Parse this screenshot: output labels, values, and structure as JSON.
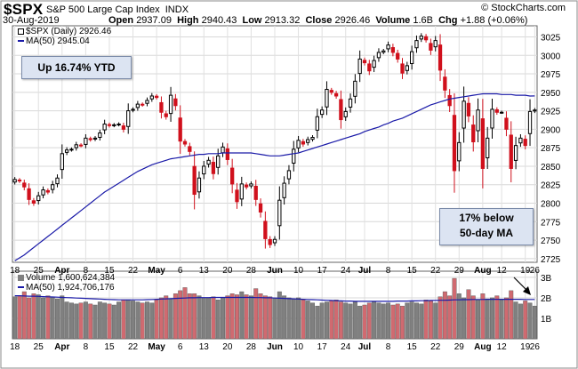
{
  "header": {
    "symbol": "$SPX",
    "name": "S&P 500 Large Cap Index",
    "exchange": "INDX",
    "date": "30-Aug-2019",
    "open_label": "Open",
    "open": "2937.09",
    "high_label": "High",
    "high": "2940.43",
    "low_label": "Low",
    "low": "2913.32",
    "close_label": "Close",
    "close": "2926.46",
    "volume_label": "Volume",
    "volume": "1.6B",
    "chg_label": "Chg",
    "chg": "+1.88 (+0.06%)",
    "brand": "© StockCharts.com"
  },
  "legend": {
    "price": "$SPX (Daily) 2926.46",
    "ma": "MA(50) 2945.04",
    "volume": "Volume 1,600,624,384",
    "vol_ma": "MA(50) 1,924,706,176"
  },
  "annotations": {
    "ytd": "Up 16.74% YTD",
    "below_line1": "17% below",
    "below_line2": "50-day MA"
  },
  "colors": {
    "up": "#000000",
    "down": "#d0101c",
    "ma": "#1a1aa8",
    "vol_up": "#808080",
    "vol_down": "#d06a70",
    "callout_bg": "#dce4f2"
  },
  "chart_data": [
    {
      "type": "candlestick",
      "title": "$SPX S&P 500 Large Cap Index INDX",
      "ylim": [
        2720,
        3040
      ],
      "y_ticks": [
        2725,
        2750,
        2775,
        2800,
        2825,
        2850,
        2875,
        2900,
        2925,
        2950,
        2975,
        3000,
        3025
      ],
      "x_ticks": [
        "18",
        "25",
        "Apr",
        "8",
        "15",
        "22",
        "May",
        "6",
        "13",
        "20",
        "28",
        "Jun",
        "10",
        "17",
        "24",
        "Jul",
        "8",
        "15",
        "22",
        "29",
        "Aug",
        "12",
        "19",
        "26"
      ],
      "grid": true,
      "series": [
        {
          "name": "$SPX (Daily)",
          "close": [
            2832,
            2830,
            2822,
            2805,
            2800,
            2810,
            2818,
            2815,
            2825,
            2834,
            2867,
            2872,
            2873,
            2879,
            2878,
            2888,
            2886,
            2888,
            2895,
            2907,
            2905,
            2906,
            2907,
            2900,
            2925,
            2927,
            2934,
            2933,
            2939,
            2945,
            2943,
            2923,
            2917,
            2946,
            2932,
            2884,
            2880,
            2870,
            2812,
            2834,
            2850,
            2858,
            2840,
            2864,
            2876,
            2859,
            2826,
            2802,
            2826,
            2822,
            2826,
            2805,
            2788,
            2752,
            2744,
            2751,
            2804,
            2827,
            2844,
            2873,
            2885,
            2880,
            2886,
            2889,
            2917,
            2926,
            2954,
            2950,
            2945,
            2913,
            2924,
            2941,
            2965,
            2995,
            2990,
            2979,
            2993,
            3004,
            3006,
            3014,
            3004,
            2995,
            2976,
            2986,
            3005,
            3020,
            3026,
            3021,
            3007,
            3020,
            2980,
            2953,
            2932,
            2844,
            2882,
            2938,
            2918,
            2883,
            2926,
            2847,
            2888,
            2927,
            2923,
            2923,
            2900,
            2847,
            2878,
            2888,
            2878,
            2924,
            2926
          ]
        },
        {
          "name": "MA(50)",
          "values": [
            2722,
            2726,
            2730,
            2735,
            2740,
            2745,
            2750,
            2755,
            2760,
            2765,
            2770,
            2775,
            2780,
            2785,
            2790,
            2795,
            2800,
            2805,
            2810,
            2815,
            2819,
            2823,
            2827,
            2831,
            2835,
            2839,
            2843,
            2846,
            2849,
            2852,
            2854,
            2856,
            2858,
            2860,
            2861,
            2862,
            2863,
            2864,
            2865,
            2866,
            2866,
            2867,
            2867,
            2867,
            2868,
            2868,
            2868,
            2868,
            2868,
            2868,
            2868,
            2867,
            2866,
            2865,
            2864,
            2864,
            2864,
            2865,
            2866,
            2867,
            2868,
            2870,
            2872,
            2874,
            2876,
            2878,
            2880,
            2882,
            2884,
            2886,
            2888,
            2890,
            2892,
            2894,
            2897,
            2899,
            2901,
            2903,
            2906,
            2908,
            2911,
            2913,
            2915,
            2918,
            2921,
            2924,
            2927,
            2930,
            2933,
            2935,
            2937,
            2939,
            2941,
            2942,
            2943,
            2944,
            2945,
            2946,
            2947,
            2948,
            2948,
            2948,
            2948,
            2947,
            2947,
            2947,
            2946,
            2946,
            2946,
            2945,
            2945.04
          ]
        }
      ]
    },
    {
      "type": "bar",
      "title": "Volume",
      "ylim": [
        0,
        3.3
      ],
      "y_ticks": [
        "1B",
        "2B",
        "3B"
      ],
      "series": [
        {
          "name": "Volume",
          "values": [
            2.05,
            2.1,
            2.3,
            2.0,
            2.2,
            2.15,
            2.0,
            2.1,
            2.05,
            1.95,
            2.1,
            1.8,
            1.75,
            1.7,
            1.75,
            1.8,
            1.7,
            1.65,
            1.8,
            1.75,
            1.7,
            1.65,
            1.8,
            1.9,
            1.9,
            1.85,
            1.8,
            1.75,
            1.8,
            1.75,
            1.9,
            2.0,
            2.1,
            1.95,
            2.2,
            2.35,
            2.5,
            2.2,
            2.2,
            2.1,
            2.0,
            2.0,
            2.05,
            1.9,
            2.0,
            2.1,
            2.2,
            2.15,
            2.3,
            2.15,
            2.1,
            2.45,
            2.2,
            2.1,
            2.05,
            2.0,
            2.3,
            2.1,
            2.0,
            1.95,
            2.0,
            1.9,
            1.85,
            1.75,
            1.6,
            1.75,
            1.8,
            1.85,
            1.9,
            1.8,
            1.75,
            1.7,
            1.8,
            1.6,
            1.65,
            1.75,
            1.8,
            1.75,
            1.7,
            1.75,
            1.65,
            1.7,
            1.6,
            1.75,
            1.8,
            1.75,
            1.7,
            1.9,
            1.85,
            1.75,
            2.05,
            2.3,
            2.1,
            2.95,
            2.2,
            2.0,
            2.4,
            2.1,
            1.9,
            2.2,
            1.95,
            2.0,
            2.1,
            1.9,
            2.0,
            2.35,
            1.8,
            1.7,
            1.85,
            1.75,
            1.6
          ]
        },
        {
          "name": "MA(50)",
          "values": [
            2.1,
            2.1,
            2.09,
            2.08,
            2.08,
            2.07,
            2.06,
            2.05,
            2.04,
            2.03,
            2.02,
            2.01,
            2.0,
            1.99,
            1.98,
            1.97,
            1.96,
            1.95,
            1.94,
            1.93,
            1.92,
            1.91,
            1.9,
            1.9,
            1.9,
            1.9,
            1.9,
            1.9,
            1.91,
            1.92,
            1.93,
            1.94,
            1.95,
            1.96,
            1.97,
            1.98,
            1.99,
            2.0,
            2.0,
            2.01,
            2.01,
            2.01,
            2.02,
            2.02,
            2.02,
            2.02,
            2.02,
            2.02,
            2.02,
            2.02,
            2.02,
            2.01,
            2.01,
            2.0,
            2.0,
            1.99,
            1.98,
            1.97,
            1.96,
            1.95,
            1.94,
            1.93,
            1.92,
            1.91,
            1.9,
            1.89,
            1.88,
            1.87,
            1.86,
            1.85,
            1.84,
            1.84,
            1.83,
            1.83,
            1.83,
            1.83,
            1.83,
            1.83,
            1.83,
            1.83,
            1.83,
            1.84,
            1.84,
            1.84,
            1.85,
            1.85,
            1.86,
            1.86,
            1.87,
            1.87,
            1.88,
            1.88,
            1.89,
            1.9,
            1.9,
            1.91,
            1.91,
            1.92,
            1.92,
            1.92,
            1.93,
            1.93,
            1.93,
            1.93,
            1.93,
            1.93,
            1.93,
            1.93,
            1.92,
            1.92,
            1.92
          ]
        }
      ]
    }
  ]
}
